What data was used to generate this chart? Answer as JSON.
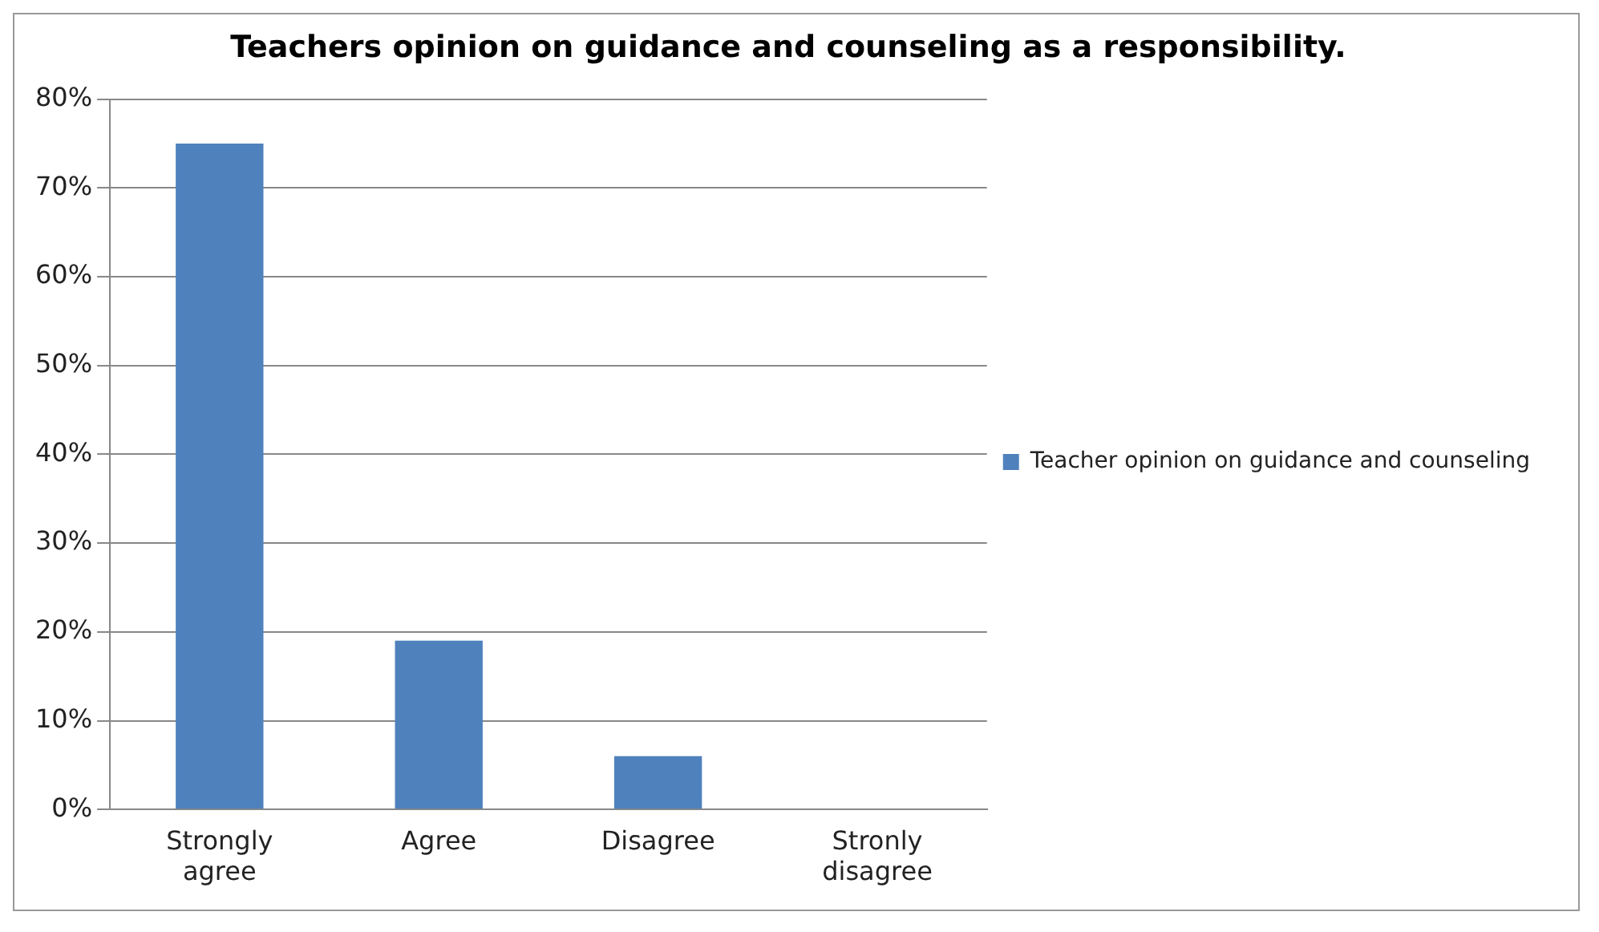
{
  "chart_data": {
    "type": "bar",
    "title": "Teachers opinion on guidance and counseling as a responsibility.",
    "categories": [
      "Strongly agree",
      "Agree",
      "Disagree",
      "Stronly disagree"
    ],
    "series": [
      {
        "name": "Teacher opinion on guidance and counseling",
        "color": "#4f81bd",
        "values": [
          75,
          19,
          6,
          0
        ]
      }
    ],
    "ylim": [
      0,
      80
    ],
    "yticks": [
      {
        "value": 0,
        "label": "0%"
      },
      {
        "value": 10,
        "label": "10%"
      },
      {
        "value": 20,
        "label": "20%"
      },
      {
        "value": 30,
        "label": "30%"
      },
      {
        "value": 40,
        "label": "40%"
      },
      {
        "value": 50,
        "label": "50%"
      },
      {
        "value": 60,
        "label": "60%"
      },
      {
        "value": 70,
        "label": "70%"
      },
      {
        "value": 80,
        "label": "80%"
      }
    ],
    "grid": "y",
    "legend": "right"
  }
}
